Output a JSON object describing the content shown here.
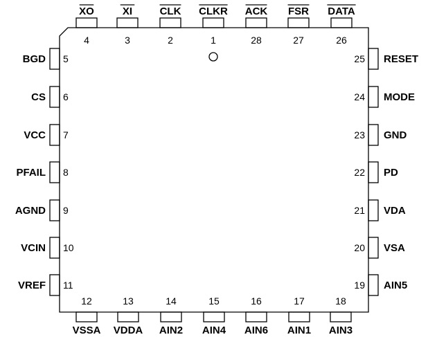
{
  "diagram": {
    "type": "pinout",
    "package_marker": "pin-1-indicator-circle",
    "pins_top": [
      {
        "number": "4",
        "signal": "XO",
        "overline": true
      },
      {
        "number": "3",
        "signal": "XI",
        "overline": true
      },
      {
        "number": "2",
        "signal": "CLK",
        "overline": true
      },
      {
        "number": "1",
        "signal": "CLKR",
        "overline": true
      },
      {
        "number": "28",
        "signal": "ACK",
        "overline": true
      },
      {
        "number": "27",
        "signal": "FSR",
        "overline": true
      },
      {
        "number": "26",
        "signal": "DATA",
        "overline": true
      }
    ],
    "pins_left": [
      {
        "number": "5",
        "signal": "BGD"
      },
      {
        "number": "6",
        "signal": "CS"
      },
      {
        "number": "7",
        "signal": "VCC"
      },
      {
        "number": "8",
        "signal": "PFAIL"
      },
      {
        "number": "9",
        "signal": "AGND"
      },
      {
        "number": "10",
        "signal": "VCIN"
      },
      {
        "number": "11",
        "signal": "VREF"
      }
    ],
    "pins_right": [
      {
        "number": "25",
        "signal": "RESET"
      },
      {
        "number": "24",
        "signal": "MODE"
      },
      {
        "number": "23",
        "signal": "GND"
      },
      {
        "number": "22",
        "signal": "PD"
      },
      {
        "number": "21",
        "signal": "VDA"
      },
      {
        "number": "20",
        "signal": "VSA"
      },
      {
        "number": "19",
        "signal": "AIN5"
      }
    ],
    "pins_bottom": [
      {
        "number": "12",
        "signal": "VSSA"
      },
      {
        "number": "13",
        "signal": "VDDA"
      },
      {
        "number": "14",
        "signal": "AIN2"
      },
      {
        "number": "15",
        "signal": "AIN4"
      },
      {
        "number": "16",
        "signal": "AIN6"
      },
      {
        "number": "17",
        "signal": "AIN1"
      },
      {
        "number": "18",
        "signal": "AIN3"
      }
    ]
  }
}
